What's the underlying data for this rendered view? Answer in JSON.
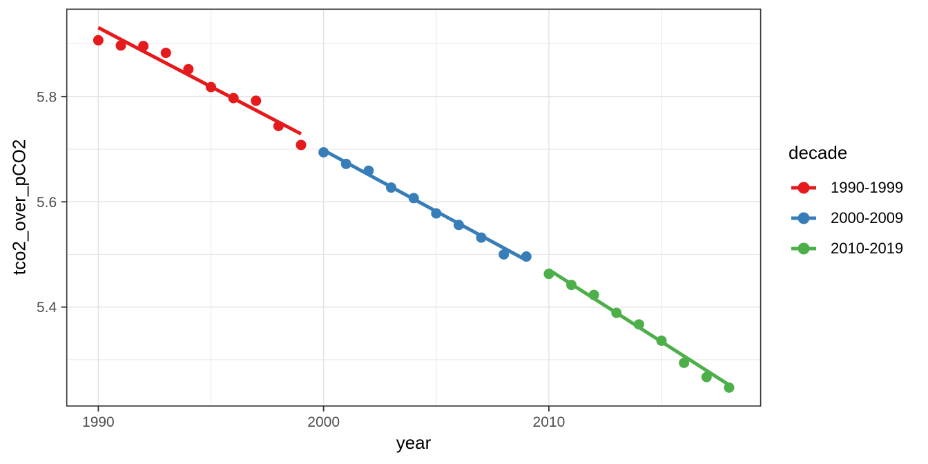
{
  "chart_data": {
    "type": "scatter",
    "title": "",
    "xlabel": "year",
    "ylabel": "tco2_over_pCO2",
    "legend_title": "decade",
    "legend_position": "right",
    "grid": true,
    "xlim": [
      1988.6,
      2019.4
    ],
    "ylim": [
      5.212,
      5.966
    ],
    "x_major_ticks": [
      1990,
      2000,
      2010
    ],
    "x_minor_gridlines": [
      1995,
      2005,
      2015
    ],
    "y_major_ticks": [
      5.4,
      5.6,
      5.8
    ],
    "y_minor_gridlines": [
      5.3,
      5.5,
      5.7,
      5.9
    ],
    "series": [
      {
        "name": "1990-1999",
        "color": "#E41A1C",
        "x": [
          1990,
          1991,
          1992,
          1993,
          1994,
          1995,
          1996,
          1997,
          1998,
          1999
        ],
        "y": [
          5.907,
          5.897,
          5.896,
          5.883,
          5.852,
          5.818,
          5.797,
          5.792,
          5.744,
          5.708
        ],
        "trend": {
          "x": [
            1990,
            1999
          ],
          "y": [
            5.931,
            5.729
          ]
        }
      },
      {
        "name": "2000-2009",
        "color": "#377EB8",
        "x": [
          2000,
          2001,
          2002,
          2003,
          2004,
          2005,
          2006,
          2007,
          2008,
          2009
        ],
        "y": [
          5.694,
          5.672,
          5.659,
          5.627,
          5.607,
          5.578,
          5.556,
          5.532,
          5.5,
          5.496
        ],
        "trend": {
          "x": [
            2000,
            2009
          ],
          "y": [
            5.698,
            5.489
          ]
        }
      },
      {
        "name": "2010-2019",
        "color": "#4DAF4A",
        "x": [
          2010,
          2011,
          2012,
          2013,
          2014,
          2015,
          2016,
          2017,
          2018
        ],
        "y": [
          5.463,
          5.442,
          5.423,
          5.389,
          5.367,
          5.336,
          5.294,
          5.267,
          5.247
        ],
        "trend": {
          "x": [
            2010,
            2018
          ],
          "y": [
            5.471,
            5.252
          ]
        }
      }
    ]
  },
  "style": {
    "panel_background": "#ffffff",
    "panel_border_color": "#333333",
    "grid_color": "#e3e3e3",
    "tick_mark_color": "#333333",
    "tick_label_color": "#4d4d4d",
    "axis_title_color": "#000000"
  }
}
